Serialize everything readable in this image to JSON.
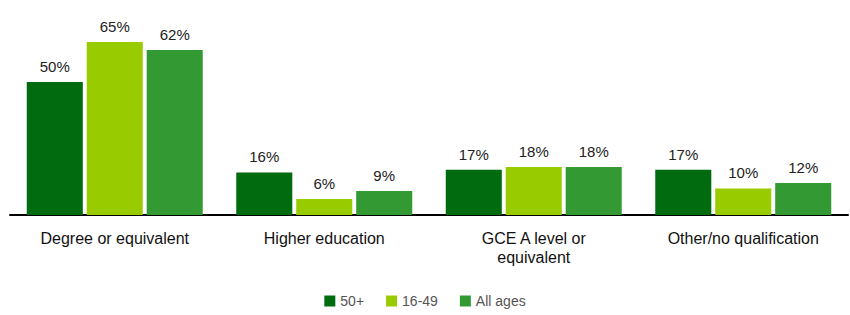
{
  "chart_data": {
    "type": "bar",
    "categories": [
      "Degree or equivalent",
      "Higher education",
      "GCE A level or\nequivalent",
      "Other/no qualification"
    ],
    "series": [
      {
        "name": "50+",
        "color": "#006b0f",
        "values": [
          50,
          16,
          17,
          17
        ],
        "value_labels": [
          "50%",
          "16%",
          "17%",
          "17%"
        ]
      },
      {
        "name": "16-49",
        "color": "#99cc00",
        "values": [
          65,
          6,
          18,
          10
        ],
        "value_labels": [
          "65%",
          "6%",
          "18%",
          "10%"
        ]
      },
      {
        "name": "All ages",
        "color": "#339933",
        "values": [
          62,
          9,
          18,
          12
        ],
        "value_labels": [
          "62%",
          "9%",
          "18%",
          "12%"
        ]
      }
    ],
    "ylim": [
      0,
      65
    ],
    "grid": false,
    "legend": "bottom",
    "data_labels": true,
    "tick_labels": "x"
  }
}
